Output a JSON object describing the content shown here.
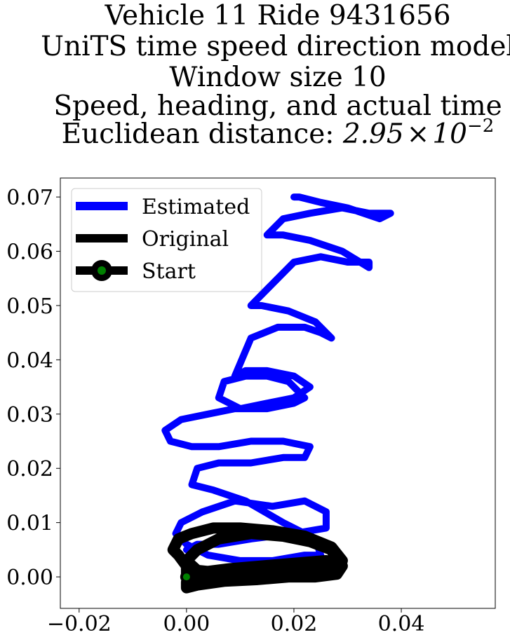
{
  "chart_data": {
    "type": "line",
    "title_lines": [
      "Vehicle 11 Ride 9431656",
      "UniTS time speed direction model",
      "Window size 10",
      "Speed, heading, and actual time"
    ],
    "title_metric_prefix": "Euclidean distance: ",
    "title_metric_mantissa": "2.95",
    "title_metric_times": "×",
    "title_metric_base": "10",
    "title_metric_exponent": "−2",
    "xlabel": "",
    "ylabel": "",
    "xlim": [
      -0.0235,
      0.0575
    ],
    "ylim": [
      -0.0058,
      0.0735
    ],
    "x_ticks": [
      -0.02,
      0.0,
      0.02,
      0.04
    ],
    "x_tick_labels": [
      "−0.02",
      "0.00",
      "0.02",
      "0.04"
    ],
    "y_ticks": [
      0.0,
      0.01,
      0.02,
      0.03,
      0.04,
      0.05,
      0.06,
      0.07
    ],
    "y_tick_labels": [
      "0.00",
      "0.01",
      "0.02",
      "0.03",
      "0.04",
      "0.05",
      "0.06",
      "0.07"
    ],
    "grid": false,
    "legend_position": "top-left",
    "series": [
      {
        "name": "Estimated",
        "color": "#0000ff",
        "x": [
          0.0,
          0.002,
          0.006,
          0.012,
          0.02,
          0.026,
          0.026,
          0.022,
          0.016,
          0.009,
          0.003,
          -0.001,
          -0.002,
          0.0,
          0.004,
          0.01,
          0.016,
          0.022,
          0.025,
          0.024,
          0.018,
          0.011,
          0.005,
          0.001,
          0.002,
          0.006,
          0.012,
          0.018,
          0.022,
          0.023,
          0.018,
          0.012,
          0.006,
          0.001,
          -0.003,
          -0.004,
          -0.001,
          0.004,
          0.009,
          0.015,
          0.02,
          0.022,
          0.019,
          0.015,
          0.011,
          0.007,
          0.006,
          0.01,
          0.015,
          0.02,
          0.023,
          0.02,
          0.015,
          0.011,
          0.009,
          0.012,
          0.017,
          0.022,
          0.025,
          0.027,
          0.024,
          0.019,
          0.014,
          0.012,
          0.015,
          0.02,
          0.025,
          0.03,
          0.034,
          0.034,
          0.029,
          0.023,
          0.018,
          0.015,
          0.018,
          0.023,
          0.029,
          0.034,
          0.038,
          0.036,
          0.03,
          0.025,
          0.021,
          0.02
        ],
        "y": [
          0.005,
          0.006,
          0.006,
          0.007,
          0.008,
          0.009,
          0.012,
          0.014,
          0.013,
          0.014,
          0.012,
          0.01,
          0.008,
          0.006,
          0.004,
          0.003,
          0.003,
          0.004,
          0.004,
          0.007,
          0.01,
          0.014,
          0.016,
          0.017,
          0.02,
          0.021,
          0.021,
          0.022,
          0.022,
          0.024,
          0.025,
          0.025,
          0.024,
          0.024,
          0.025,
          0.027,
          0.029,
          0.03,
          0.031,
          0.031,
          0.032,
          0.033,
          0.036,
          0.037,
          0.037,
          0.036,
          0.033,
          0.031,
          0.032,
          0.033,
          0.035,
          0.037,
          0.038,
          0.038,
          0.037,
          0.044,
          0.046,
          0.046,
          0.045,
          0.044,
          0.047,
          0.049,
          0.05,
          0.05,
          0.053,
          0.058,
          0.059,
          0.058,
          0.058,
          0.057,
          0.06,
          0.062,
          0.063,
          0.063,
          0.066,
          0.067,
          0.068,
          0.067,
          0.067,
          0.066,
          0.068,
          0.069,
          0.07,
          0.07
        ]
      },
      {
        "name": "Original",
        "color": "#000000",
        "x": [
          0.0,
          0.0,
          -0.0015,
          -0.0025,
          -0.0015,
          0.001,
          0.005,
          0.01,
          0.016,
          0.022,
          0.027,
          0.029,
          0.0285,
          0.025,
          0.019,
          0.012,
          0.006,
          0.002,
          0.0,
          0.002,
          0.006,
          0.012,
          0.018,
          0.023,
          0.027,
          0.028,
          0.024,
          0.018,
          0.012,
          0.006,
          0.002,
          0.0,
          0.0,
          0.002,
          0.007,
          0.013,
          0.019,
          0.024,
          0.028,
          0.029,
          0.026,
          0.02,
          0.014,
          0.008,
          0.004,
          0.002,
          0.0
        ],
        "y": [
          0.0,
          0.002,
          0.004,
          0.005,
          0.007,
          0.008,
          0.009,
          0.009,
          0.0085,
          0.0075,
          0.0055,
          0.003,
          0.0015,
          0.001,
          0.0008,
          0.0008,
          0.0008,
          0.0012,
          0.003,
          0.005,
          0.007,
          0.008,
          0.0075,
          0.0065,
          0.005,
          0.003,
          0.0018,
          0.0012,
          0.001,
          0.001,
          0.0005,
          -0.001,
          -0.002,
          -0.0015,
          -0.0008,
          -0.0005,
          0.0,
          0.0,
          0.0005,
          0.002,
          0.003,
          0.0025,
          0.002,
          0.0015,
          0.001,
          0.0005,
          0.0
        ]
      }
    ],
    "start_point": {
      "name": "Start",
      "x": 0.0,
      "y": 0.0,
      "marker_color": "#008000",
      "ring_color": "#000000"
    },
    "legend": [
      {
        "label": "Estimated",
        "color": "#0000ff",
        "marker": false
      },
      {
        "label": "Original",
        "color": "#000000",
        "marker": false
      },
      {
        "label": "Start",
        "color": "#000000",
        "marker": true,
        "marker_color": "#008000"
      }
    ]
  }
}
